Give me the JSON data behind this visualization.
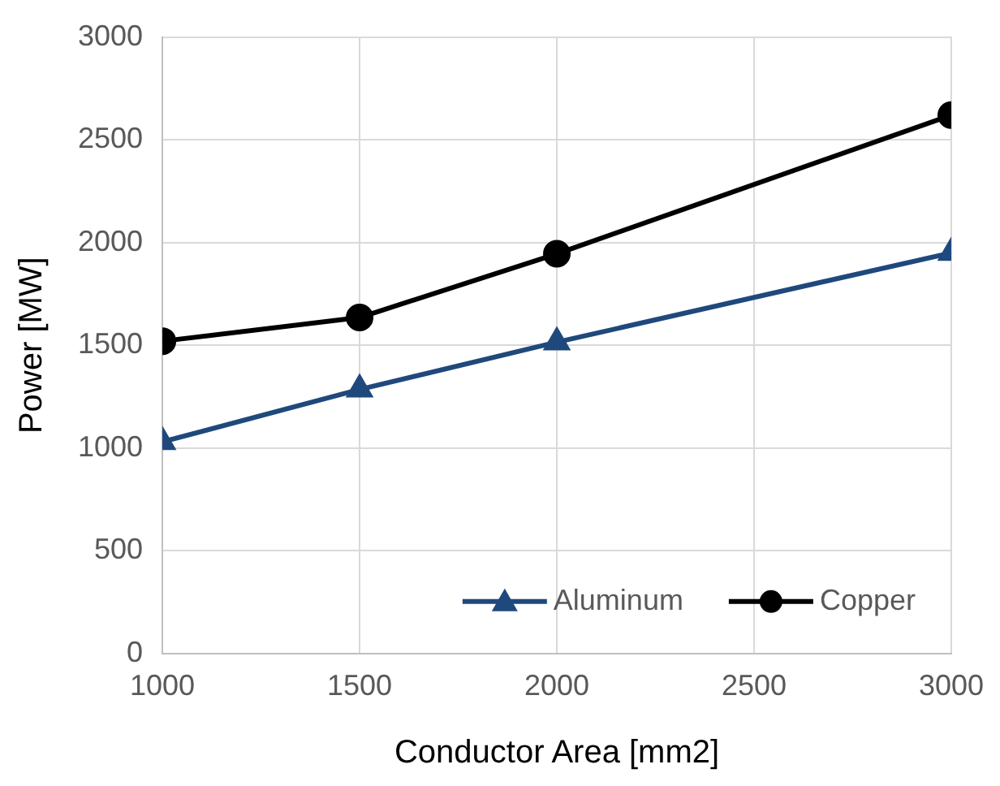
{
  "chart_data": {
    "type": "line",
    "xlabel": "Conductor Area [mm2]",
    "ylabel": "Power [MW]",
    "x": [
      1000,
      1500,
      2000,
      3000
    ],
    "series": [
      {
        "name": "Aluminum",
        "color": "#1f497d",
        "marker": "triangle",
        "values": [
          1030,
          1285,
          1515,
          1950
        ]
      },
      {
        "name": "Copper",
        "color": "#000000",
        "marker": "circle",
        "values": [
          1520,
          1635,
          1945,
          2620
        ]
      }
    ],
    "xlim": [
      1000,
      3000
    ],
    "xticks": [
      1000,
      1500,
      2000,
      2500,
      3000
    ],
    "ylim": [
      0,
      3000
    ],
    "yticks": [
      0,
      500,
      1000,
      1500,
      2000,
      2500,
      3000
    ],
    "grid": true,
    "legend": "bottom right"
  }
}
